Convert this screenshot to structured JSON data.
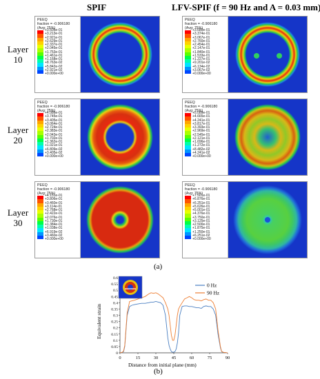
{
  "columns": {
    "left": "SPIF",
    "right": "LFV-SPIF (f = 90 Hz and A = 0.03 mm)"
  },
  "rows": [
    {
      "label_line1": "Layer",
      "label_line2": "10"
    },
    {
      "label_line1": "Layer",
      "label_line2": "20"
    },
    {
      "label_line1": "Layer",
      "label_line2": "30"
    }
  ],
  "legend_header": {
    "line1": "PEEQ",
    "line2": "fraction = -0.906180",
    "line3": "(Avg: 75%)"
  },
  "legend_colors": [
    "#ff0000",
    "#ff5500",
    "#ffa500",
    "#ffd200",
    "#e8ff00",
    "#aaff00",
    "#5aff00",
    "#00ff46",
    "#00ffaa",
    "#00e6ff",
    "#0096ff",
    "#0046ff",
    "#0000ff"
  ],
  "panels": [
    {
      "id": "spif-10",
      "values": [
        "+3.505e-01",
        "+3.213e-01",
        "+2.921e-01",
        "+2.629e-01",
        "+2.337e-01",
        "+2.045e-01",
        "+1.753e-01",
        "+1.461e-01",
        "+1.168e-01",
        "+8.763e-02",
        "+5.842e-02",
        "+2.921e-02",
        "+0.000e+00"
      ]
    },
    {
      "id": "lfv-10",
      "values": [
        "+3.680e-01",
        "+3.374e-01",
        "+3.067e-01",
        "+2.760e-01",
        "+2.454e-01",
        "+2.147e-01",
        "+1.840e-01",
        "+1.533e-01",
        "+1.227e-01",
        "+9.201e-02",
        "+6.134e-02",
        "+3.067e-02",
        "+0.000e+00"
      ]
    },
    {
      "id": "spif-20",
      "values": [
        "+4.086e-01",
        "+3.745e-01",
        "+3.405e-01",
        "+3.064e-01",
        "+2.724e-01",
        "+2.383e-01",
        "+2.043e-01",
        "+1.702e-01",
        "+1.362e-01",
        "+1.021e-01",
        "+6.809e-02",
        "+3.405e-02",
        "+0.000e+00"
      ]
    },
    {
      "id": "lfv-20",
      "values": [
        "+5.089e-01",
        "+4.665e-01",
        "+4.241e-01",
        "+3.817e-01",
        "+3.393e-01",
        "+2.969e-01",
        "+2.545e-01",
        "+2.121e-01",
        "+1.696e-01",
        "+1.272e-01",
        "+8.482e-02",
        "+4.241e-02",
        "+0.000e+00"
      ]
    },
    {
      "id": "spif-30",
      "values": [
        "+4.151e-01",
        "+3.806e-01",
        "+3.460e-01",
        "+3.114e-01",
        "+2.768e-01",
        "+2.422e-01",
        "+2.076e-01",
        "+1.730e-01",
        "+1.384e-01",
        "+1.038e-01",
        "+6.919e-02",
        "+3.460e-02",
        "+0.000e+00"
      ]
    },
    {
      "id": "lfv-30",
      "values": [
        "+7.501e-01",
        "+6.876e-01",
        "+6.251e-01",
        "+5.626e-01",
        "+5.001e-01",
        "+4.376e-01",
        "+3.750e-01",
        "+3.125e-01",
        "+2.500e-01",
        "+1.875e-01",
        "+1.250e-01",
        "+6.251e-02",
        "+0.000e+00"
      ]
    }
  ],
  "caption_a": "(a)",
  "caption_b": "(b)",
  "chart_data": {
    "type": "line",
    "xlabel": "Distance from initial plane (mm)",
    "ylabel": "Equivalent strain",
    "xlim": [
      0,
      90
    ],
    "ylim": [
      0,
      0.6
    ],
    "x_ticks": [
      0,
      15,
      30,
      45,
      60,
      75,
      90
    ],
    "y_ticks": [
      "0",
      "0.05",
      "0.1",
      "0.15",
      "0.2",
      "0.25",
      "0.3",
      "0.35",
      "0.4",
      "0.45",
      "0.5",
      "0.55",
      "0.6"
    ],
    "legend_position": "top-right",
    "colors": {
      "0 Hz": "#4a7fc1",
      "90 Hz": "#ed7d31"
    },
    "series": [
      {
        "name": "0 Hz",
        "x": [
          0,
          1,
          2,
          3,
          4,
          6,
          8,
          10,
          12,
          15,
          18,
          21,
          24,
          26,
          28,
          30,
          32,
          34,
          36,
          38,
          40,
          41,
          42,
          43,
          44,
          45,
          46,
          47,
          48,
          49,
          50,
          52,
          54,
          56,
          58,
          60,
          62,
          64,
          66,
          68,
          70,
          72,
          74,
          76,
          78,
          80,
          82,
          84,
          85,
          86,
          87,
          88,
          89,
          90
        ],
        "y": [
          0,
          0.002,
          0.004,
          0.01,
          0.05,
          0.3,
          0.37,
          0.38,
          0.385,
          0.39,
          0.395,
          0.395,
          0.4,
          0.405,
          0.405,
          0.41,
          0.405,
          0.4,
          0.38,
          0.3,
          0.12,
          0.06,
          0.03,
          0.01,
          0.005,
          0.005,
          0.01,
          0.03,
          0.08,
          0.16,
          0.3,
          0.37,
          0.375,
          0.375,
          0.37,
          0.37,
          0.365,
          0.36,
          0.36,
          0.355,
          0.37,
          0.375,
          0.37,
          0.37,
          0.35,
          0.3,
          0.15,
          0.04,
          0.01,
          0.005,
          0.003,
          0.002,
          0.001,
          0
        ]
      },
      {
        "name": "90 Hz",
        "x": [
          0,
          1,
          2,
          3,
          4,
          6,
          8,
          10,
          12,
          15,
          18,
          21,
          24,
          26,
          28,
          30,
          32,
          34,
          36,
          38,
          40,
          41,
          42,
          43,
          44,
          45,
          46,
          47,
          48,
          49,
          50,
          52,
          54,
          56,
          58,
          60,
          62,
          64,
          66,
          68,
          70,
          72,
          74,
          76,
          78,
          80,
          82,
          84,
          85,
          86,
          87,
          88,
          89,
          90
        ],
        "y": [
          0,
          0.002,
          0.005,
          0.015,
          0.06,
          0.32,
          0.41,
          0.415,
          0.42,
          0.43,
          0.44,
          0.45,
          0.47,
          0.48,
          0.475,
          0.48,
          0.47,
          0.455,
          0.44,
          0.4,
          0.35,
          0.3,
          0.22,
          0.14,
          0.1,
          0.1,
          0.14,
          0.22,
          0.3,
          0.35,
          0.37,
          0.4,
          0.43,
          0.44,
          0.45,
          0.44,
          0.425,
          0.42,
          0.42,
          0.415,
          0.425,
          0.43,
          0.42,
          0.42,
          0.4,
          0.35,
          0.18,
          0.05,
          0.012,
          0.006,
          0.003,
          0.002,
          0.001,
          0
        ]
      }
    ]
  }
}
